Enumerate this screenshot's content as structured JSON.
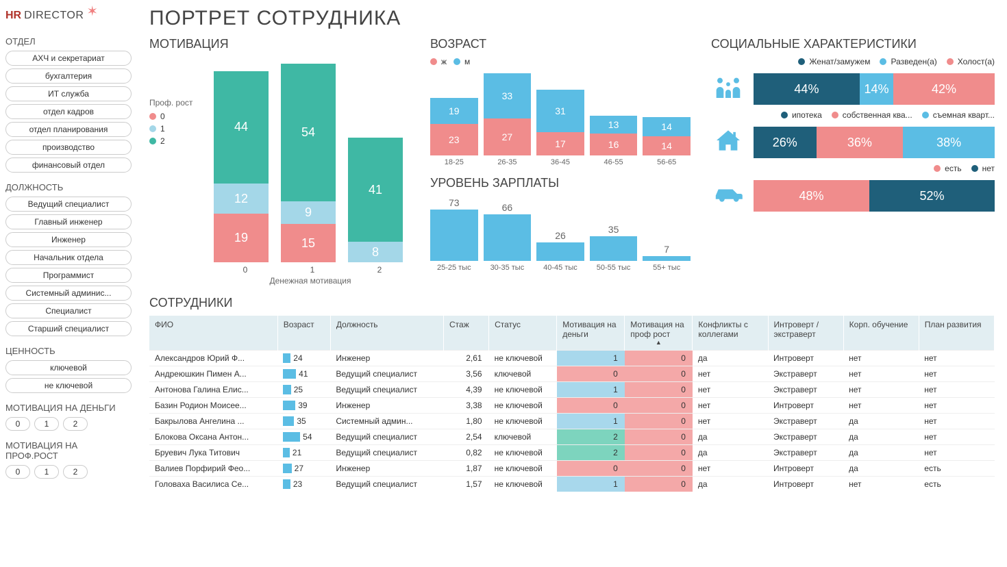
{
  "colors": {
    "teal": "#3fb8a4",
    "lightblue": "#a4d7e8",
    "blue": "#5bbde4",
    "coral": "#f08c8c",
    "navy": "#1f5f7a",
    "logo_hr": "#b0332a",
    "logo_dir": "#4a4a4a"
  },
  "logo": {
    "hr": "HR",
    "director": "DIRECTOR"
  },
  "title": "ПОРТРЕТ СОТРУДНИКА",
  "filters": {
    "dept": {
      "title": "ОТДЕЛ",
      "items": [
        "АХЧ и секретариат",
        "бухгалтерия",
        "ИТ служба",
        "отдел кадров",
        "отдел планирования",
        "производство",
        "финансовый отдел"
      ]
    },
    "role": {
      "title": "ДОЛЖНОСТЬ",
      "items": [
        "Ведущий специалист",
        "Главный инженер",
        "Инженер",
        "Начальник отдела",
        "Программист",
        "Системный админис...",
        "Специалист",
        "Старший специалист"
      ]
    },
    "value": {
      "title": "ЦЕННОСТЬ",
      "items": [
        "ключевой",
        "не ключевой"
      ]
    },
    "motiv_money": {
      "title": "МОТИВАЦИЯ НА ДЕНЬГИ",
      "items": [
        "0",
        "1",
        "2"
      ]
    },
    "motiv_prof": {
      "title": "МОТИВАЦИЯ НА ПРОФ.РОСТ",
      "items": [
        "0",
        "1",
        "2"
      ]
    }
  },
  "motivation": {
    "title": "МОТИВАЦИЯ",
    "legend_title": "Проф. рост",
    "legend": [
      {
        "label": "0",
        "color": "#f08c8c"
      },
      {
        "label": "1",
        "color": "#a4d7e8"
      },
      {
        "label": "2",
        "color": "#3fb8a4"
      }
    ],
    "xlabel": "Денежная мотивация",
    "max": 78,
    "bars": [
      {
        "x": "0",
        "stack": [
          {
            "v": 44,
            "c": "#3fb8a4"
          },
          {
            "v": 12,
            "c": "#a4d7e8"
          },
          {
            "v": 19,
            "c": "#f08c8c"
          }
        ]
      },
      {
        "x": "1",
        "stack": [
          {
            "v": 54,
            "c": "#3fb8a4"
          },
          {
            "v": 9,
            "c": "#a4d7e8"
          },
          {
            "v": 15,
            "c": "#f08c8c"
          }
        ]
      },
      {
        "x": "2",
        "stack": [
          {
            "v": 41,
            "c": "#3fb8a4"
          },
          {
            "v": 8,
            "c": "#a4d7e8"
          }
        ]
      }
    ]
  },
  "age": {
    "title": "ВОЗРАСТ",
    "legend": [
      {
        "label": "ж",
        "color": "#f08c8c"
      },
      {
        "label": "м",
        "color": "#5bbde4"
      }
    ],
    "max": 60,
    "bars": [
      {
        "x": "18-25",
        "m": 19,
        "f": 23
      },
      {
        "x": "26-35",
        "m": 33,
        "f": 27
      },
      {
        "x": "36-45",
        "m": 31,
        "f": 17
      },
      {
        "x": "46-55",
        "m": 13,
        "f": 16
      },
      {
        "x": "56-65",
        "m": 14,
        "f": 14
      }
    ]
  },
  "salary": {
    "title": "УРОВЕНЬ ЗАРПЛАТЫ",
    "max": 73,
    "bars": [
      {
        "x": "25-25 тыс",
        "v": 73
      },
      {
        "x": "30-35 тыс",
        "v": 66
      },
      {
        "x": "40-45 тыс",
        "v": 26
      },
      {
        "x": "50-55 тыс",
        "v": 35
      },
      {
        "x": "55+ тыс",
        "v": 7
      }
    ]
  },
  "social": {
    "title": "СОЦИАЛЬНЫЕ ХАРАКТЕРИСТИКИ",
    "rows": [
      {
        "icon": "family",
        "legend": [
          {
            "label": "Женат/замужем",
            "color": "#1f5f7a"
          },
          {
            "label": "Разведен(а)",
            "color": "#5bbde4"
          },
          {
            "label": "Холост(а)",
            "color": "#f08c8c"
          }
        ],
        "segments": [
          {
            "v": 44,
            "label": "44%",
            "c": "#1f5f7a"
          },
          {
            "v": 14,
            "label": "14%",
            "c": "#5bbde4"
          },
          {
            "v": 42,
            "label": "42%",
            "c": "#f08c8c"
          }
        ]
      },
      {
        "icon": "house",
        "legend": [
          {
            "label": "ипотека",
            "color": "#1f5f7a"
          },
          {
            "label": "собственная ква...",
            "color": "#f08c8c"
          },
          {
            "label": "съемная кварт...",
            "color": "#5bbde4"
          }
        ],
        "segments": [
          {
            "v": 26,
            "label": "26%",
            "c": "#1f5f7a"
          },
          {
            "v": 36,
            "label": "36%",
            "c": "#f08c8c"
          },
          {
            "v": 38,
            "label": "38%",
            "c": "#5bbde4"
          }
        ]
      },
      {
        "icon": "car",
        "legend": [
          {
            "label": "есть",
            "color": "#f08c8c"
          },
          {
            "label": "нет",
            "color": "#1f5f7a"
          }
        ],
        "segments": [
          {
            "v": 48,
            "label": "48%",
            "c": "#f08c8c"
          },
          {
            "v": 52,
            "label": "52%",
            "c": "#1f5f7a"
          }
        ]
      }
    ]
  },
  "table": {
    "title": "СОТРУДНИКИ",
    "columns": [
      "ФИО",
      "Возраст",
      "Должность",
      "Стаж",
      "Статус",
      "Мотивация на деньги",
      "Мотивация на проф рост",
      "Конфликты с коллегами",
      "Интроверт / экстраверт",
      "Корп. обучение",
      "План развития"
    ],
    "sort_col": 6,
    "rows": [
      {
        "name": "Александров Юрий Ф...",
        "age": 24,
        "role": "Инженер",
        "exp": "2,61",
        "status": "не ключевой",
        "m": 1,
        "p": 0,
        "conf": "да",
        "ie": "Интроверт",
        "train": "нет",
        "plan": "нет"
      },
      {
        "name": "Андреюшкин Пимен А...",
        "age": 41,
        "role": "Ведущий специалист",
        "exp": "3,56",
        "status": "ключевой",
        "m": 0,
        "p": 0,
        "conf": "нет",
        "ie": "Экстраверт",
        "train": "нет",
        "plan": "нет"
      },
      {
        "name": "Антонова Галина Елис...",
        "age": 25,
        "role": "Ведущий специалист",
        "exp": "4,39",
        "status": "не ключевой",
        "m": 1,
        "p": 0,
        "conf": "нет",
        "ie": "Экстраверт",
        "train": "нет",
        "plan": "нет"
      },
      {
        "name": "Базин Родион Моисее...",
        "age": 39,
        "role": "Инженер",
        "exp": "3,38",
        "status": "не ключевой",
        "m": 0,
        "p": 0,
        "conf": "нет",
        "ie": "Интроверт",
        "train": "нет",
        "plan": "нет"
      },
      {
        "name": "Бакрылова Ангелина ...",
        "age": 35,
        "role": "Системный админ...",
        "exp": "1,80",
        "status": "не ключевой",
        "m": 1,
        "p": 0,
        "conf": "нет",
        "ie": "Экстраверт",
        "train": "да",
        "plan": "нет"
      },
      {
        "name": "Блокова Оксана Антон...",
        "age": 54,
        "role": "Ведущий специалист",
        "exp": "2,54",
        "status": "ключевой",
        "m": 2,
        "p": 0,
        "conf": "да",
        "ie": "Экстраверт",
        "train": "да",
        "plan": "нет"
      },
      {
        "name": "Бруевич Лука Титович",
        "age": 21,
        "role": "Ведущий специалист",
        "exp": "0,82",
        "status": "не ключевой",
        "m": 2,
        "p": 0,
        "conf": "да",
        "ie": "Экстраверт",
        "train": "да",
        "plan": "нет"
      },
      {
        "name": "Валиев Порфирий Фео...",
        "age": 27,
        "role": "Инженер",
        "exp": "1,87",
        "status": "не ключевой",
        "m": 0,
        "p": 0,
        "conf": "нет",
        "ie": "Интроверт",
        "train": "да",
        "plan": "есть"
      },
      {
        "name": "Головаха Василиса Се...",
        "age": 23,
        "role": "Ведущий специалист",
        "exp": "1,57",
        "status": "не ключевой",
        "m": 1,
        "p": 0,
        "conf": "да",
        "ie": "Интроверт",
        "train": "нет",
        "plan": "есть"
      }
    ]
  }
}
